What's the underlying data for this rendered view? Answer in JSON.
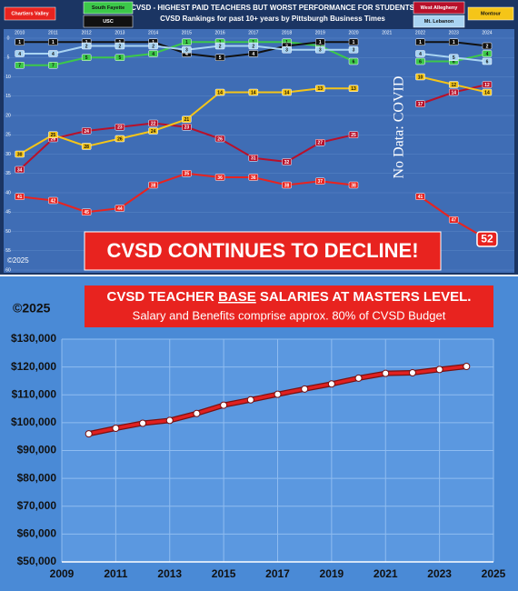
{
  "chart_data": [
    {
      "type": "line",
      "title": "CVSD - HIGHEST PAID TEACHERS BUT WORST PERFORMANCE FOR STUDENTS",
      "subtitle": "CVSD Rankings for past 10+ years by Pittsburgh Business Times",
      "annotations": [
        "No Data: COVID",
        "CVSD CONTINUES TO DECLINE!",
        "©2025"
      ],
      "x": [
        2010,
        2011,
        2012,
        2013,
        2014,
        2015,
        2016,
        2017,
        2018,
        2019,
        2020,
        2021,
        2022,
        2023,
        2024
      ],
      "xlim": [
        2009.9,
        2024.6
      ],
      "ylim": [
        0,
        60
      ],
      "y_inverted": true,
      "yticks": [
        0,
        5,
        10,
        15,
        20,
        25,
        30,
        35,
        40,
        45,
        50,
        55,
        60
      ],
      "series": [
        {
          "name": "Chartiers Valley",
          "color": "#e8231f",
          "values": [
            41,
            42,
            45,
            44,
            38,
            35,
            36,
            36,
            38,
            37,
            38,
            null,
            41,
            47,
            52
          ]
        },
        {
          "name": "South Fayette",
          "color": "#3cc84a",
          "values": [
            7,
            7,
            5,
            5,
            4,
            1,
            1,
            1,
            1,
            2,
            6,
            null,
            6,
            6,
            4
          ]
        },
        {
          "name": "USC",
          "color": "#111111",
          "values": [
            1,
            1,
            1,
            1,
            1,
            4,
            5,
            4,
            2,
            1,
            1,
            null,
            1,
            1,
            2
          ]
        },
        {
          "name": "West Allegheny",
          "color": "#b8102a",
          "values": [
            34,
            26,
            24,
            23,
            22,
            23,
            26,
            31,
            32,
            27,
            25,
            null,
            17,
            14,
            12
          ]
        },
        {
          "name": "Mt. Lebanon",
          "color": "#a9d4f2",
          "values": [
            4,
            4,
            2,
            2,
            2,
            3,
            2,
            2,
            3,
            3,
            3,
            null,
            4,
            5,
            6
          ]
        },
        {
          "name": "Montour",
          "color": "#f5c518",
          "values": [
            30,
            25,
            28,
            26,
            24,
            21,
            14,
            14,
            14,
            13,
            13,
            null,
            10,
            12,
            14
          ]
        }
      ]
    },
    {
      "type": "line",
      "title_parts": [
        "CVSD TEACHER ",
        "BASE",
        " SALARIES AT MASTERS LEVEL."
      ],
      "subtitle": "Salary and Benefits comprise approx. 80% of CVSD Budget",
      "annotations": [
        "©2025"
      ],
      "x": [
        2010,
        2011,
        2012,
        2013,
        2014,
        2015,
        2016,
        2017,
        2018,
        2019,
        2020,
        2021,
        2022,
        2023,
        2024
      ],
      "xlim": [
        2009,
        2025
      ],
      "xticks": [
        2009,
        2011,
        2013,
        2015,
        2017,
        2019,
        2021,
        2023,
        2025
      ],
      "ylim": [
        50000,
        130000
      ],
      "yticks": [
        {
          "value": 50000,
          "label": "$50,000"
        },
        {
          "value": 60000,
          "label": "$60,000"
        },
        {
          "value": 70000,
          "label": "$70,000"
        },
        {
          "value": 80000,
          "label": "$80,000"
        },
        {
          "value": 90000,
          "label": "$90,000"
        },
        {
          "value": 100000,
          "label": "$100,000"
        },
        {
          "value": 110000,
          "label": "$110,000"
        },
        {
          "value": 120000,
          "label": "$120,000"
        },
        {
          "value": 130000,
          "label": "$130,000"
        }
      ],
      "grid": true,
      "series": [
        {
          "color": "#e02020",
          "values": [
            96000,
            98000,
            99800,
            100800,
            103300,
            106300,
            108200,
            110200,
            112100,
            113900,
            116000,
            117700,
            117900,
            119100,
            120200
          ]
        }
      ]
    }
  ]
}
